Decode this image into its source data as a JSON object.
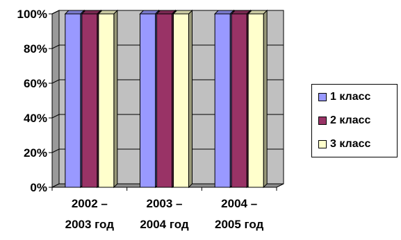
{
  "chart_data": {
    "type": "bar",
    "categories": [
      [
        "2002 –",
        "2003 год"
      ],
      [
        "2003 –",
        "2004 год"
      ],
      [
        "2004 –",
        "2005 год"
      ]
    ],
    "series": [
      {
        "name": "1 класс",
        "values": [
          100,
          100,
          100
        ],
        "color": "#9999ff"
      },
      {
        "name": "2 класс",
        "values": [
          100,
          100,
          100
        ],
        "color": "#993366"
      },
      {
        "name": "3 класс",
        "values": [
          100,
          100,
          100
        ],
        "color": "#ffffcc"
      }
    ],
    "ylim": [
      0,
      100
    ],
    "yticks": [
      "0%",
      "20%",
      "40%",
      "60%",
      "80%",
      "100%"
    ],
    "grid": true,
    "style": "3d-clustered",
    "wall_color": "#c0c0c0",
    "legend_position": "right"
  },
  "legend": {
    "items": [
      {
        "label": "1 класс",
        "color": "#9999ff"
      },
      {
        "label": "2 класс",
        "color": "#993366"
      },
      {
        "label": "3 класс",
        "color": "#ffffcc"
      }
    ]
  }
}
